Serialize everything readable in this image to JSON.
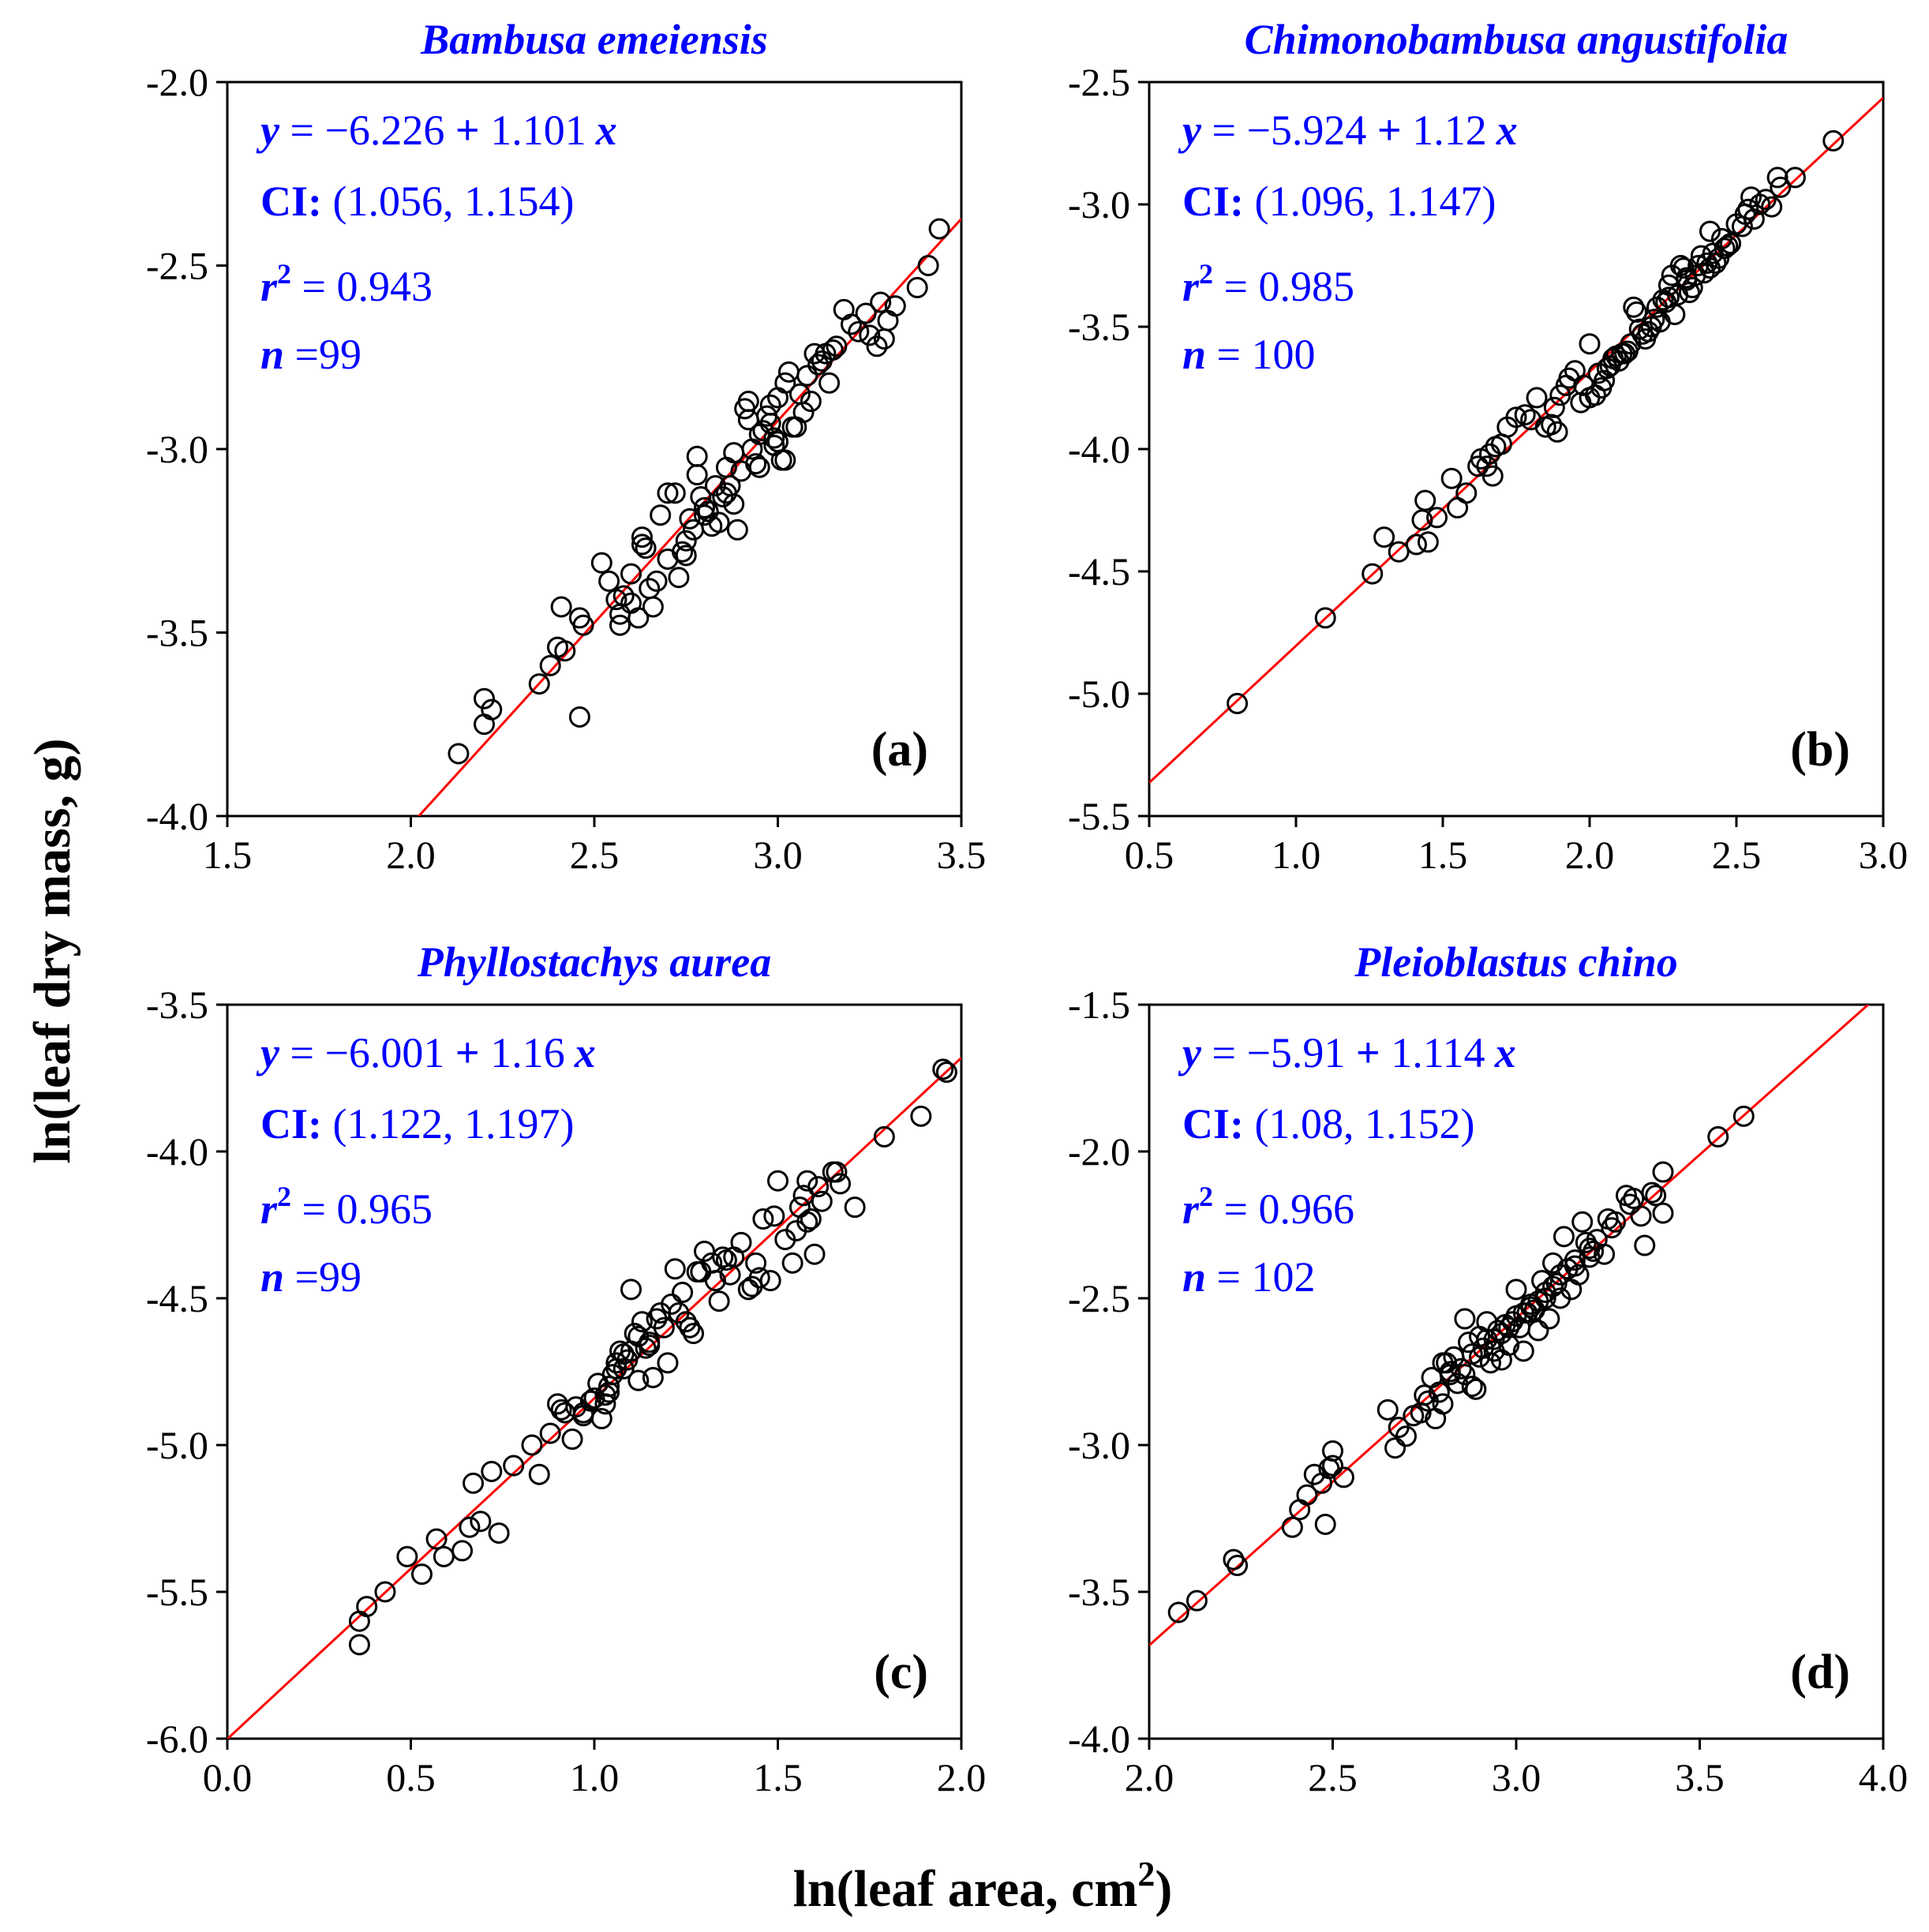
{
  "figure": {
    "xlabel_main": "ln(leaf area,  cm",
    "xlabel_sup": "2",
    "xlabel_end": ")",
    "ylabel": "ln(leaf dry mass,  g)"
  },
  "colors": {
    "annotation": "#0000ff",
    "fit_line": "#ff0000",
    "marker": "#000000",
    "axis": "#000000"
  },
  "chart_data": [
    {
      "type": "scatter",
      "panel": "(a)",
      "title": "Bambusa emeiensis",
      "eq": {
        "y": "y",
        "eq": " = ",
        "minus": "−",
        "intercept": "6.226",
        "plus": " + ",
        "slope": "1.101",
        "x": "x"
      },
      "ci": {
        "label": "CI:",
        "value": " (1.056, 1.154)"
      },
      "r2": {
        "r": "r",
        "sup": "2",
        "value": "  = 0.943"
      },
      "n": {
        "label": "n",
        "value": "  =99"
      },
      "fit": {
        "intercept": -6.226,
        "slope": 1.101
      },
      "xlim": [
        1.5,
        3.5
      ],
      "ylim": [
        -4.0,
        -2.0
      ],
      "xticks": [
        1.5,
        2.0,
        2.5,
        3.0,
        3.5
      ],
      "yticks": [
        -4.0,
        -3.5,
        -3.0,
        -2.5,
        -2.0
      ],
      "xtick_labels": [
        "1.5",
        "2.0",
        "2.5",
        "3.0",
        "3.5"
      ],
      "ytick_labels": [
        "-4.0",
        "-3.5",
        "-3.0",
        "-2.5",
        "-2.0"
      ],
      "x": [
        2.13,
        2.2,
        2.2,
        2.22,
        2.35,
        2.38,
        2.4,
        2.41,
        2.42,
        2.46,
        2.47,
        2.46,
        2.52,
        2.54,
        2.56,
        2.57,
        2.58,
        2.6,
        2.62,
        2.63,
        2.64,
        2.65,
        2.66,
        2.67,
        2.68,
        2.7,
        2.72,
        2.73,
        2.74,
        2.75,
        2.76,
        2.77,
        2.78,
        2.78,
        2.79,
        2.8,
        2.81,
        2.82,
        2.83,
        2.84,
        2.85,
        2.86,
        2.87,
        2.88,
        2.89,
        2.9,
        2.91,
        2.92,
        2.93,
        2.94,
        2.95,
        2.96,
        2.97,
        2.98,
        2.99,
        3.0,
        3.01,
        3.02,
        3.03,
        3.05,
        3.06,
        3.08,
        3.1,
        3.12,
        3.14,
        3.16,
        3.18,
        3.2,
        3.22,
        3.24,
        3.25,
        3.27,
        3.28,
        3.3,
        3.32,
        3.38,
        3.41,
        3.44,
        2.6,
        2.7,
        2.75,
        2.92,
        2.95,
        2.98,
        3.0,
        3.04,
        3.07,
        3.09,
        3.11,
        3.13,
        2.88,
        2.57,
        2.63,
        2.8,
        2.86,
        2.99,
        3.15,
        3.29,
        3.02
      ],
      "y": [
        -3.83,
        -3.68,
        -3.75,
        -3.71,
        -3.64,
        -3.59,
        -3.54,
        -3.43,
        -3.55,
        -3.73,
        -3.48,
        -3.46,
        -3.31,
        -3.36,
        -3.41,
        -3.48,
        -3.4,
        -3.34,
        -3.46,
        -3.24,
        -3.27,
        -3.38,
        -3.43,
        -3.36,
        -3.18,
        -3.3,
        -3.12,
        -3.35,
        -3.28,
        -3.25,
        -3.19,
        -3.22,
        -3.07,
        -3.02,
        -3.13,
        -3.18,
        -3.17,
        -3.21,
        -3.1,
        -3.2,
        -3.13,
        -3.05,
        -3.1,
        -3.15,
        -3.22,
        -3.06,
        -2.89,
        -2.92,
        -3.0,
        -3.04,
        -2.96,
        -2.95,
        -2.91,
        -2.93,
        -2.99,
        -2.86,
        -3.03,
        -2.82,
        -2.79,
        -2.94,
        -2.85,
        -2.8,
        -2.74,
        -2.76,
        -2.82,
        -2.72,
        -2.62,
        -2.66,
        -2.68,
        -2.63,
        -2.69,
        -2.72,
        -2.6,
        -2.65,
        -2.61,
        -2.56,
        -2.5,
        -2.4,
        -3.42,
        -3.12,
        -3.29,
        -2.87,
        -3.05,
        -2.88,
        -2.98,
        -2.94,
        -2.9,
        -2.87,
        -2.77,
        -2.74,
        -3.01,
        -3.45,
        -3.26,
        -3.16,
        -3.12,
        -2.97,
        -2.73,
        -2.7,
        -3.03
      ]
    },
    {
      "type": "scatter",
      "panel": "(b)",
      "title": "Chimonobambusa angustifolia",
      "eq": {
        "y": "y",
        "eq": " = ",
        "minus": "−",
        "intercept": "5.924",
        "plus": " + ",
        "slope": "1.12",
        "x": "x"
      },
      "ci": {
        "label": "CI:",
        "value": " (1.096, 1.147)"
      },
      "r2": {
        "r": "r",
        "sup": "2",
        "value": "  = 0.985"
      },
      "n": {
        "label": "n",
        "value": "  = 100"
      },
      "fit": {
        "intercept": -5.924,
        "slope": 1.12
      },
      "xlim": [
        0.5,
        3.0
      ],
      "ylim": [
        -5.5,
        -2.5
      ],
      "xticks": [
        0.5,
        1.0,
        1.5,
        2.0,
        2.5,
        3.0
      ],
      "yticks": [
        -5.5,
        -5.0,
        -4.5,
        -4.0,
        -3.5,
        -3.0,
        -2.5
      ],
      "xtick_labels": [
        "0.5",
        "1.0",
        "1.5",
        "2.0",
        "2.5",
        "3.0"
      ],
      "ytick_labels": [
        "-5.5",
        "-5.0",
        "-4.5",
        "-4.0",
        "-3.5",
        "-3.0",
        "-2.5"
      ],
      "x": [
        0.8,
        1.1,
        1.26,
        1.3,
        1.41,
        1.43,
        1.44,
        1.45,
        1.53,
        1.55,
        1.63,
        1.65,
        1.67,
        1.68,
        1.7,
        1.72,
        1.75,
        1.78,
        1.82,
        1.85,
        1.87,
        1.89,
        1.9,
        1.92,
        1.95,
        1.97,
        2.0,
        2.0,
        2.02,
        2.03,
        2.05,
        2.06,
        2.08,
        2.1,
        2.11,
        2.13,
        2.15,
        2.16,
        2.17,
        2.18,
        2.2,
        2.21,
        2.22,
        2.23,
        2.25,
        2.26,
        2.27,
        2.28,
        2.3,
        2.31,
        2.32,
        2.33,
        2.35,
        2.36,
        2.37,
        2.38,
        2.4,
        2.41,
        2.42,
        2.43,
        2.45,
        2.47,
        2.5,
        2.52,
        2.54,
        2.55,
        2.58,
        2.6,
        2.64,
        2.65,
        2.7,
        2.83,
        1.48,
        1.58,
        1.66,
        1.93,
        1.98,
        2.07,
        2.12,
        2.14,
        2.19,
        2.24,
        2.29,
        2.34,
        2.39,
        2.44,
        2.46,
        2.48,
        2.53,
        2.62,
        1.35,
        1.62,
        1.8,
        1.88,
        2.04,
        2.09,
        2.27,
        2.33,
        2.41,
        2.56
      ],
      "y": [
        -5.04,
        -4.69,
        -4.51,
        -4.36,
        -4.39,
        -4.29,
        -4.21,
        -4.38,
        -4.12,
        -4.24,
        -4.04,
        -4.07,
        -4.11,
        -3.99,
        -3.98,
        -3.91,
        -3.87,
        -3.86,
        -3.79,
        -3.91,
        -3.9,
        -3.93,
        -3.78,
        -3.74,
        -3.68,
        -3.81,
        -3.57,
        -3.79,
        -3.78,
        -3.69,
        -3.72,
        -3.67,
        -3.63,
        -3.64,
        -3.61,
        -3.6,
        -3.42,
        -3.44,
        -3.51,
        -3.53,
        -3.52,
        -3.5,
        -3.47,
        -3.42,
        -3.39,
        -3.4,
        -3.38,
        -3.29,
        -3.37,
        -3.25,
        -3.26,
        -3.3,
        -3.34,
        -3.29,
        -3.25,
        -3.21,
        -3.24,
        -3.11,
        -3.2,
        -3.24,
        -3.14,
        -3.17,
        -3.08,
        -3.09,
        -3.02,
        -2.97,
        -3.0,
        -2.98,
        -2.89,
        -2.93,
        -2.89,
        -2.74,
        -4.28,
        -4.18,
        -4.02,
        -3.71,
        -3.74,
        -3.66,
        -3.61,
        -3.57,
        -3.55,
        -3.48,
        -3.45,
        -3.36,
        -3.28,
        -3.22,
        -3.18,
        -3.16,
        -3.04,
        -3.01,
        -4.42,
        -4.07,
        -3.88,
        -3.83,
        -3.75,
        -3.62,
        -3.33,
        -3.31,
        -3.26,
        -3.06
      ]
    },
    {
      "type": "scatter",
      "panel": "(c)",
      "title": "Phyllostachys aurea",
      "eq": {
        "y": "y",
        "eq": " = ",
        "minus": "−",
        "intercept": "6.001",
        "plus": " + ",
        "slope": "1.16",
        "x": "x"
      },
      "ci": {
        "label": "CI:",
        "value": " (1.122, 1.197)"
      },
      "r2": {
        "r": "r",
        "sup": "2",
        "value": "  = 0.965"
      },
      "n": {
        "label": "n",
        "value": "  =99"
      },
      "fit": {
        "intercept": -6.001,
        "slope": 1.16
      },
      "xlim": [
        0.0,
        2.0
      ],
      "ylim": [
        -6.0,
        -3.5
      ],
      "xticks": [
        0.0,
        0.5,
        1.0,
        1.5,
        2.0
      ],
      "yticks": [
        -6.0,
        -5.5,
        -5.0,
        -4.5,
        -4.0,
        -3.5
      ],
      "xtick_labels": [
        "0.0",
        "0.5",
        "1.0",
        "1.5",
        "2.0"
      ],
      "ytick_labels": [
        "-6.0",
        "-5.5",
        "-5.0",
        "-4.5",
        "-4.0",
        "-3.5"
      ],
      "x": [
        0.36,
        0.36,
        0.38,
        0.43,
        0.49,
        0.53,
        0.57,
        0.59,
        0.64,
        0.66,
        0.67,
        0.69,
        0.72,
        0.74,
        0.78,
        0.83,
        0.85,
        0.88,
        0.9,
        0.92,
        0.94,
        0.95,
        0.97,
        0.99,
        1.0,
        1.01,
        1.02,
        1.03,
        1.04,
        1.05,
        1.06,
        1.07,
        1.08,
        1.09,
        1.1,
        1.11,
        1.12,
        1.13,
        1.15,
        1.16,
        1.17,
        1.18,
        1.2,
        1.22,
        1.23,
        1.25,
        1.27,
        1.28,
        1.3,
        1.32,
        1.34,
        1.36,
        1.38,
        1.4,
        1.42,
        1.44,
        1.46,
        1.48,
        1.5,
        1.52,
        1.54,
        1.56,
        1.58,
        1.59,
        1.6,
        1.62,
        1.65,
        1.67,
        1.71,
        1.79,
        1.89,
        1.95,
        1.96,
        1.1,
        1.15,
        1.19,
        1.26,
        1.33,
        1.45,
        1.55,
        1.58,
        1.03,
        1.08,
        0.91,
        0.97,
        1.14,
        1.21,
        1.29,
        1.37,
        1.43,
        1.49,
        1.57,
        1.61,
        1.66,
        1.04,
        1.06,
        1.12,
        1.24,
        1.35
      ],
      "y": [
        -5.6,
        -5.68,
        -5.55,
        -5.5,
        -5.38,
        -5.44,
        -5.32,
        -5.38,
        -5.36,
        -5.28,
        -5.13,
        -5.26,
        -5.09,
        -5.3,
        -5.07,
        -5.0,
        -5.1,
        -4.96,
        -4.86,
        -4.89,
        -4.98,
        -4.87,
        -4.9,
        -4.85,
        -4.84,
        -4.79,
        -4.91,
        -4.86,
        -4.8,
        -4.76,
        -4.72,
        -4.68,
        -4.69,
        -4.71,
        -4.47,
        -4.62,
        -4.78,
        -4.58,
        -4.66,
        -4.77,
        -4.57,
        -4.55,
        -4.72,
        -4.4,
        -4.55,
        -4.58,
        -4.62,
        -4.41,
        -4.34,
        -4.38,
        -4.51,
        -4.37,
        -4.36,
        -4.31,
        -4.47,
        -4.38,
        -4.23,
        -4.44,
        -4.1,
        -4.3,
        -4.38,
        -4.19,
        -4.1,
        -4.23,
        -4.35,
        -4.17,
        -4.07,
        -4.11,
        -4.19,
        -3.95,
        -3.88,
        -3.72,
        -3.73,
        -4.68,
        -4.65,
        -4.6,
        -4.6,
        -4.44,
        -4.43,
        -4.27,
        -4.24,
        -4.83,
        -4.74,
        -4.88,
        -4.89,
        -4.67,
        -4.52,
        -4.41,
        -4.42,
        -4.46,
        -4.22,
        -4.15,
        -4.12,
        -4.07,
        -4.82,
        -4.74,
        -4.63,
        -4.48,
        -4.36
      ]
    },
    {
      "type": "scatter",
      "panel": "(d)",
      "title": "Pleioblastus chino",
      "eq": {
        "y": "y",
        "eq": " = ",
        "minus": "−",
        "intercept": "5.91",
        "plus": " + ",
        "slope": "1.114",
        "x": "x"
      },
      "ci": {
        "label": "CI:",
        "value": " (1.08, 1.152)"
      },
      "r2": {
        "r": "r",
        "sup": "2",
        "value": "  = 0.966"
      },
      "n": {
        "label": "n",
        "value": "  = 102"
      },
      "fit": {
        "intercept": -5.91,
        "slope": 1.114
      },
      "xlim": [
        2.0,
        4.0
      ],
      "ylim": [
        -4.0,
        -1.5
      ],
      "xticks": [
        2.0,
        2.5,
        3.0,
        3.5,
        4.0
      ],
      "yticks": [
        -4.0,
        -3.5,
        -3.0,
        -2.5,
        -2.0,
        -1.5
      ],
      "xtick_labels": [
        "2.0",
        "2.5",
        "3.0",
        "3.5",
        "4.0"
      ],
      "ytick_labels": [
        "-4.0",
        "-3.5",
        "-3.0",
        "-2.5",
        "-2.0",
        "-1.5"
      ],
      "x": [
        2.08,
        2.13,
        2.23,
        2.24,
        2.39,
        2.41,
        2.43,
        2.45,
        2.47,
        2.49,
        2.5,
        2.5,
        2.53,
        2.65,
        2.67,
        2.7,
        2.72,
        2.74,
        2.76,
        2.77,
        2.78,
        2.79,
        2.8,
        2.81,
        2.82,
        2.83,
        2.84,
        2.85,
        2.86,
        2.87,
        2.88,
        2.89,
        2.9,
        2.91,
        2.92,
        2.93,
        2.94,
        2.95,
        2.96,
        2.97,
        2.98,
        2.99,
        3.0,
        3.01,
        3.02,
        3.03,
        3.04,
        3.05,
        3.06,
        3.07,
        3.08,
        3.09,
        3.1,
        3.11,
        3.12,
        3.13,
        3.14,
        3.15,
        3.16,
        3.17,
        3.18,
        3.19,
        3.2,
        3.22,
        3.24,
        3.25,
        3.27,
        3.3,
        3.32,
        3.35,
        3.38,
        3.4,
        3.4,
        3.55,
        3.62,
        2.48,
        2.68,
        2.75,
        2.8,
        2.86,
        2.88,
        2.92,
        2.96,
        3.0,
        3.04,
        3.08,
        3.12,
        3.16,
        3.2,
        3.26,
        3.31,
        3.37,
        2.82,
        2.9,
        2.94,
        2.98,
        3.02,
        3.06,
        3.1,
        3.14,
        3.21,
        3.34
      ],
      "y": [
        -3.57,
        -3.53,
        -3.39,
        -3.41,
        -3.28,
        -3.22,
        -3.17,
        -3.1,
        -3.13,
        -3.08,
        -3.02,
        -3.07,
        -3.11,
        -2.88,
        -3.01,
        -2.97,
        -2.9,
        -2.89,
        -2.85,
        -2.77,
        -2.91,
        -2.82,
        -2.86,
        -2.72,
        -2.76,
        -2.7,
        -2.79,
        -2.74,
        -2.57,
        -2.65,
        -2.8,
        -2.81,
        -2.63,
        -2.67,
        -2.58,
        -2.72,
        -2.68,
        -2.61,
        -2.71,
        -2.59,
        -2.66,
        -2.58,
        -2.47,
        -2.6,
        -2.68,
        -2.55,
        -2.52,
        -2.54,
        -2.61,
        -2.44,
        -2.5,
        -2.57,
        -2.38,
        -2.45,
        -2.5,
        -2.29,
        -2.4,
        -2.47,
        -2.37,
        -2.42,
        -2.24,
        -2.31,
        -2.36,
        -2.3,
        -2.35,
        -2.23,
        -2.24,
        -2.15,
        -2.16,
        -2.32,
        -2.15,
        -2.07,
        -2.21,
        -1.95,
        -1.88,
        -3.27,
        -2.94,
        -2.83,
        -2.72,
        -2.76,
        -2.69,
        -2.64,
        -2.62,
        -2.56,
        -2.53,
        -2.48,
        -2.42,
        -2.39,
        -2.33,
        -2.26,
        -2.18,
        -2.14,
        -2.75,
        -2.7,
        -2.64,
        -2.6,
        -2.55,
        -2.51,
        -2.46,
        -2.4,
        -2.34,
        -2.22
      ]
    }
  ]
}
